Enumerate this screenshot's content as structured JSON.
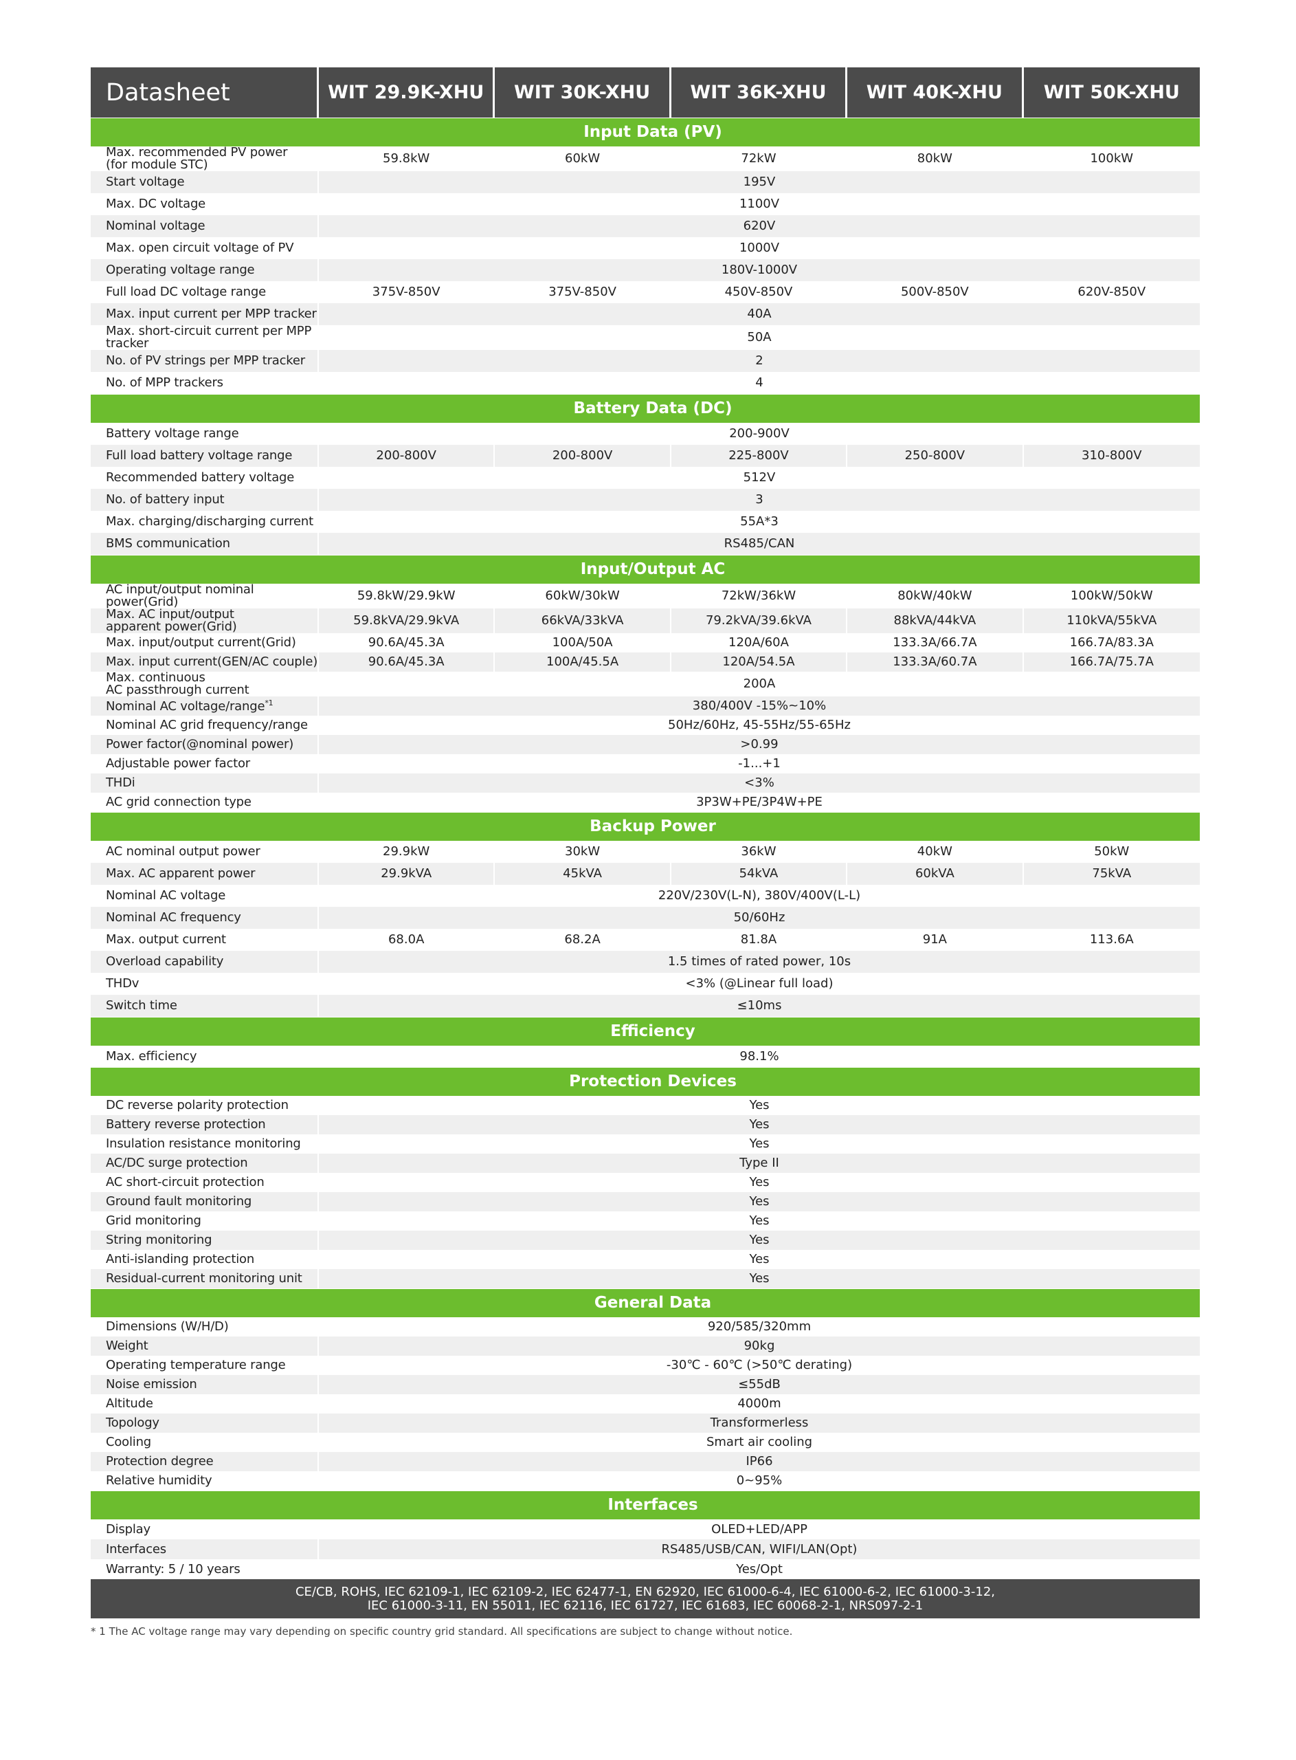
{
  "header": {
    "title": "Datasheet",
    "columns": [
      "WIT 29.9K-XHU",
      "WIT 30K-XHU",
      "WIT 36K-XHU",
      "WIT 40K-XHU",
      "WIT 50K-XHU"
    ]
  },
  "sections": [
    {
      "title": "Input Data (PV)",
      "rows": [
        {
          "label": "Max. recommended PV power\n(for module STC)",
          "values": [
            "59.8kW",
            "60kW",
            "72kW",
            "80kW",
            "100kW"
          ]
        },
        {
          "label": "Start voltage",
          "value": "195V"
        },
        {
          "label": "Max. DC voltage",
          "value": "1100V"
        },
        {
          "label": "Nominal voltage",
          "value": "620V"
        },
        {
          "label": "Max. open circuit voltage of PV",
          "value": "1000V"
        },
        {
          "label": "Operating voltage range",
          "value": "180V-1000V"
        },
        {
          "label": "Full load DC voltage range",
          "values": [
            "375V-850V",
            "375V-850V",
            "450V-850V",
            "500V-850V",
            "620V-850V"
          ]
        },
        {
          "label": "Max. input current per MPP tracker",
          "value": "40A"
        },
        {
          "label": "Max. short-circuit current per MPP tracker",
          "value": "50A"
        },
        {
          "label": "No. of PV strings per MPP tracker",
          "value": "2"
        },
        {
          "label": "No. of MPP trackers",
          "value": "4"
        }
      ]
    },
    {
      "title": "Battery Data (DC)",
      "rows": [
        {
          "label": "Battery voltage range",
          "value": "200-900V"
        },
        {
          "label": "Full load battery voltage range",
          "values": [
            "200-800V",
            "200-800V",
            "225-800V",
            "250-800V",
            "310-800V"
          ]
        },
        {
          "label": "Recommended battery voltage",
          "value": "512V"
        },
        {
          "label": "No. of battery input",
          "value": "3"
        },
        {
          "label": "Max. charging/discharging current",
          "value": "55A*3"
        },
        {
          "label": "BMS communication",
          "value": "RS485/CAN"
        }
      ]
    },
    {
      "title": "Input/Output AC",
      "rows": [
        {
          "label": "AC input/output nominal power(Grid)",
          "values": [
            "59.8kW/29.9kW",
            "60kW/30kW",
            "72kW/36kW",
            "80kW/40kW",
            "100kW/50kW"
          ]
        },
        {
          "label": "Max. AC input/output\napparent power(Grid)",
          "values": [
            "59.8kVA/29.9kVA",
            "66kVA/33kVA",
            "79.2kVA/39.6kVA",
            "88kVA/44kVA",
            "110kVA/55kVA"
          ]
        },
        {
          "label": "Max. input/output current(Grid)",
          "values": [
            "90.6A/45.3A",
            "100A/50A",
            "120A/60A",
            "133.3A/66.7A",
            "166.7A/83.3A"
          ]
        },
        {
          "label": "Max. input current(GEN/AC couple)",
          "values": [
            "90.6A/45.3A",
            "100A/45.5A",
            "120A/54.5A",
            "133.3A/60.7A",
            "166.7A/75.7A"
          ]
        },
        {
          "label": "Max. continuous\nAC passthrough current",
          "value": "200A"
        },
        {
          "label": "Nominal AC voltage/range",
          "note": "*1",
          "value": "380/400V  -15%~10%"
        },
        {
          "label": "Nominal AC grid frequency/range",
          "value": "50Hz/60Hz, 45-55Hz/55-65Hz"
        },
        {
          "label": "Power factor(@nominal power)",
          "value": ">0.99"
        },
        {
          "label": "Adjustable power factor",
          "value": "-1...+1"
        },
        {
          "label": "THDi",
          "value": "<3%"
        },
        {
          "label": "AC grid connection type",
          "value": "3P3W+PE/3P4W+PE"
        }
      ]
    },
    {
      "title": "Backup Power",
      "rows": [
        {
          "label": "AC nominal output power",
          "values": [
            "29.9kW",
            "30kW",
            "36kW",
            "40kW",
            "50kW"
          ]
        },
        {
          "label": "Max. AC apparent power",
          "values": [
            "29.9kVA",
            "45kVA",
            "54kVA",
            "60kVA",
            "75kVA"
          ]
        },
        {
          "label": "Nominal AC voltage",
          "value": "220V/230V(L-N), 380V/400V(L-L)"
        },
        {
          "label": "Nominal AC frequency",
          "value": "50/60Hz"
        },
        {
          "label": "Max. output current",
          "values": [
            "68.0A",
            "68.2A",
            "81.8A",
            "91A",
            "113.6A"
          ]
        },
        {
          "label": "Overload capability",
          "value": "1.5 times of rated power, 10s"
        },
        {
          "label": "THDv",
          "value": "<3% (@Linear full load)"
        },
        {
          "label": "Switch time",
          "value": "≤10ms"
        }
      ]
    },
    {
      "title": "Efficiency",
      "rows": [
        {
          "label": "Max. efficiency",
          "value": "98.1%"
        }
      ]
    },
    {
      "title": "Protection Devices",
      "rows": [
        {
          "label": "DC reverse polarity protection",
          "value": "Yes"
        },
        {
          "label": "Battery reverse protection",
          "value": "Yes"
        },
        {
          "label": "Insulation resistance monitoring",
          "value": "Yes"
        },
        {
          "label": "AC/DC surge protection",
          "value": "Type II"
        },
        {
          "label": "AC short-circuit protection",
          "value": "Yes"
        },
        {
          "label": "Ground fault monitoring",
          "value": "Yes"
        },
        {
          "label": "Grid monitoring",
          "value": "Yes"
        },
        {
          "label": "String monitoring",
          "value": "Yes"
        },
        {
          "label": "Anti-islanding protection",
          "value": "Yes"
        },
        {
          "label": "Residual-current monitoring unit",
          "value": "Yes"
        }
      ]
    },
    {
      "title": "General Data",
      "rows": [
        {
          "label": "Dimensions (W/H/D)",
          "value": "920/585/320mm"
        },
        {
          "label": "Weight",
          "value": "90kg"
        },
        {
          "label": "Operating temperature range",
          "value": "-30℃ - 60℃ (>50℃ derating)"
        },
        {
          "label": "Noise emission",
          "value": "≤55dB"
        },
        {
          "label": "Altitude",
          "value": "4000m"
        },
        {
          "label": "Topology",
          "value": "Transformerless"
        },
        {
          "label": "Cooling",
          "value": "Smart air cooling"
        },
        {
          "label": "Protection degree",
          "value": "IP66"
        },
        {
          "label": "Relative humidity",
          "value": "0~95%"
        }
      ]
    },
    {
      "title": "Interfaces",
      "rows": [
        {
          "label": "Display",
          "value": "OLED+LED/APP"
        },
        {
          "label": "Interfaces",
          "value": "RS485/USB/CAN, WIFI/LAN(Opt)"
        },
        {
          "label": "Warranty: 5 / 10 years",
          "value": "Yes/Opt"
        }
      ]
    }
  ],
  "certifications": "CE/CB, ROHS, IEC 62109-1, IEC 62109-2, IEC 62477-1, EN 62920, IEC 61000-6-4, IEC 61000-6-2, IEC 61000-3-12,\nIEC 61000-3-11, EN 55011, IEC 62116, IEC 61727, IEC 61683, IEC 60068-2-1, NRS097-2-1",
  "footnote": "* 1 The AC voltage range may vary depending on specific country grid standard. All specifications are subject to change without notice."
}
